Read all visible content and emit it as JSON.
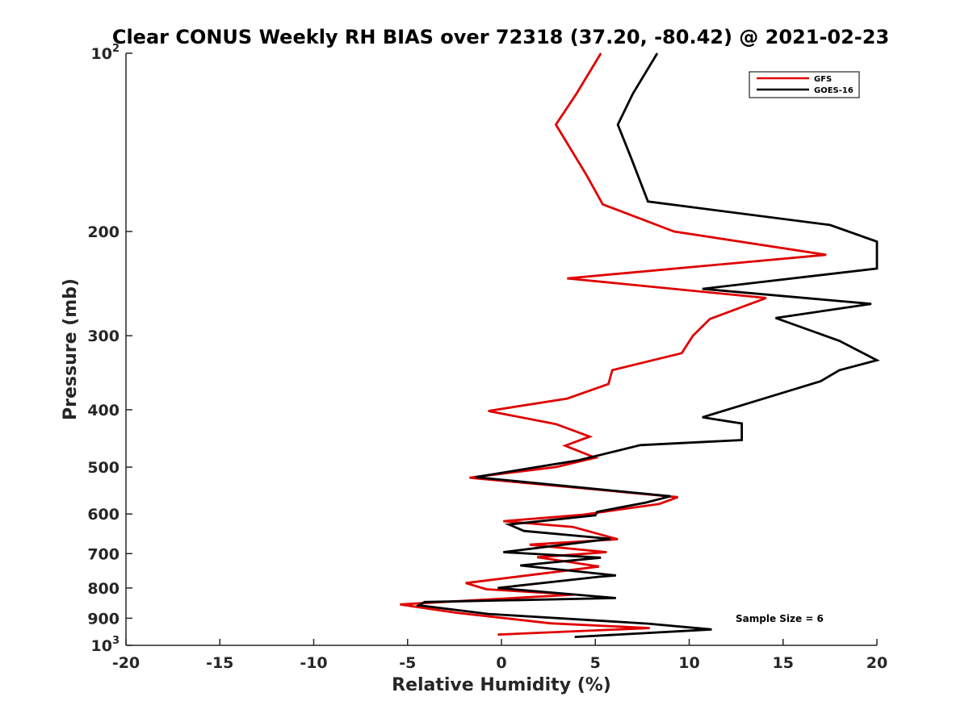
{
  "chart_data": {
    "type": "line",
    "title": "Clear CONUS Weekly RH BIAS over 72318 (37.20, -80.42) @ 2021-02-23",
    "xlabel": "Relative Humidity (%)",
    "ylabel": "Pressure (mb)",
    "xlim": [
      -20,
      20
    ],
    "ylim": [
      100,
      1000
    ],
    "yscale": "log",
    "y_reversed": true,
    "grid": false,
    "legend_position": "top-right",
    "x_ticks": [
      "-20",
      "-15",
      "-10",
      "-5",
      "0",
      "5",
      "10",
      "15",
      "20"
    ],
    "y_ticks": [
      {
        "value": 100,
        "base": "10",
        "exp": "2"
      },
      {
        "value": 200,
        "label": "200"
      },
      {
        "value": 300,
        "label": "300"
      },
      {
        "value": 400,
        "label": "400"
      },
      {
        "value": 500,
        "label": "500"
      },
      {
        "value": 600,
        "label": "600"
      },
      {
        "value": 700,
        "label": "700"
      },
      {
        "value": 800,
        "label": "800"
      },
      {
        "value": 900,
        "label": "900"
      },
      {
        "value": 1000,
        "base": "10",
        "exp": "3"
      }
    ],
    "annotation": "Sample Size = 6",
    "series": [
      {
        "name": "GFS",
        "color": "#e00000",
        "points": [
          [
            5.3,
            100
          ],
          [
            4.0,
            117
          ],
          [
            2.9,
            132
          ],
          [
            4.5,
            160
          ],
          [
            5.4,
            180
          ],
          [
            9.2,
            200
          ],
          [
            17.3,
            219
          ],
          [
            3.5,
            240
          ],
          [
            14.1,
            259
          ],
          [
            11.1,
            281
          ],
          [
            10.2,
            300
          ],
          [
            9.6,
            321
          ],
          [
            5.9,
            343
          ],
          [
            5.7,
            362
          ],
          [
            3.5,
            383
          ],
          [
            -0.7,
            402
          ],
          [
            2.9,
            423
          ],
          [
            4.7,
            444
          ],
          [
            3.4,
            460
          ],
          [
            5.0,
            482
          ],
          [
            2.9,
            500
          ],
          [
            -1.7,
            521
          ],
          [
            9.4,
            562
          ],
          [
            8.4,
            577
          ],
          [
            4.3,
            602
          ],
          [
            0.1,
            617
          ],
          [
            3.8,
            631
          ],
          [
            6.2,
            662
          ],
          [
            1.5,
            676
          ],
          [
            5.6,
            696
          ],
          [
            1.9,
            710
          ],
          [
            5.2,
            736
          ],
          [
            -1.9,
            785
          ],
          [
            -0.8,
            804
          ],
          [
            3.9,
            821
          ],
          [
            -5.4,
            853
          ],
          [
            -2.4,
            881
          ],
          [
            2.6,
            918
          ],
          [
            7.9,
            935
          ],
          [
            -0.2,
            959
          ]
        ]
      },
      {
        "name": "GOES-16",
        "color": "#000000",
        "points": [
          [
            8.3,
            100
          ],
          [
            7.0,
            117
          ],
          [
            6.2,
            132
          ],
          [
            6.9,
            150
          ],
          [
            7.8,
            178
          ],
          [
            17.5,
            195
          ],
          [
            20.0,
            208
          ],
          [
            20.0,
            231
          ],
          [
            10.7,
            250
          ],
          [
            19.7,
            265
          ],
          [
            14.6,
            280
          ],
          [
            18.0,
            306
          ],
          [
            20.0,
            330
          ],
          [
            18.0,
            343
          ],
          [
            17.0,
            358
          ],
          [
            14.1,
            382
          ],
          [
            10.7,
            412
          ],
          [
            12.8,
            422
          ],
          [
            12.8,
            450
          ],
          [
            7.4,
            459
          ],
          [
            4.1,
            487
          ],
          [
            -1.4,
            520
          ],
          [
            9.0,
            560
          ],
          [
            7.7,
            574
          ],
          [
            5.1,
            595
          ],
          [
            5.0,
            603
          ],
          [
            0.4,
            625
          ],
          [
            1.2,
            641
          ],
          [
            5.8,
            661
          ],
          [
            0.1,
            696
          ],
          [
            5.3,
            711
          ],
          [
            1.0,
            733
          ],
          [
            6.1,
            762
          ],
          [
            5.2,
            766
          ],
          [
            -0.2,
            800
          ],
          [
            6.1,
            832
          ],
          [
            -4.1,
            845
          ],
          [
            -4.4,
            856
          ],
          [
            -0.7,
            885
          ],
          [
            7.8,
            919
          ],
          [
            11.2,
            940
          ],
          [
            3.9,
            968
          ]
        ]
      }
    ]
  }
}
